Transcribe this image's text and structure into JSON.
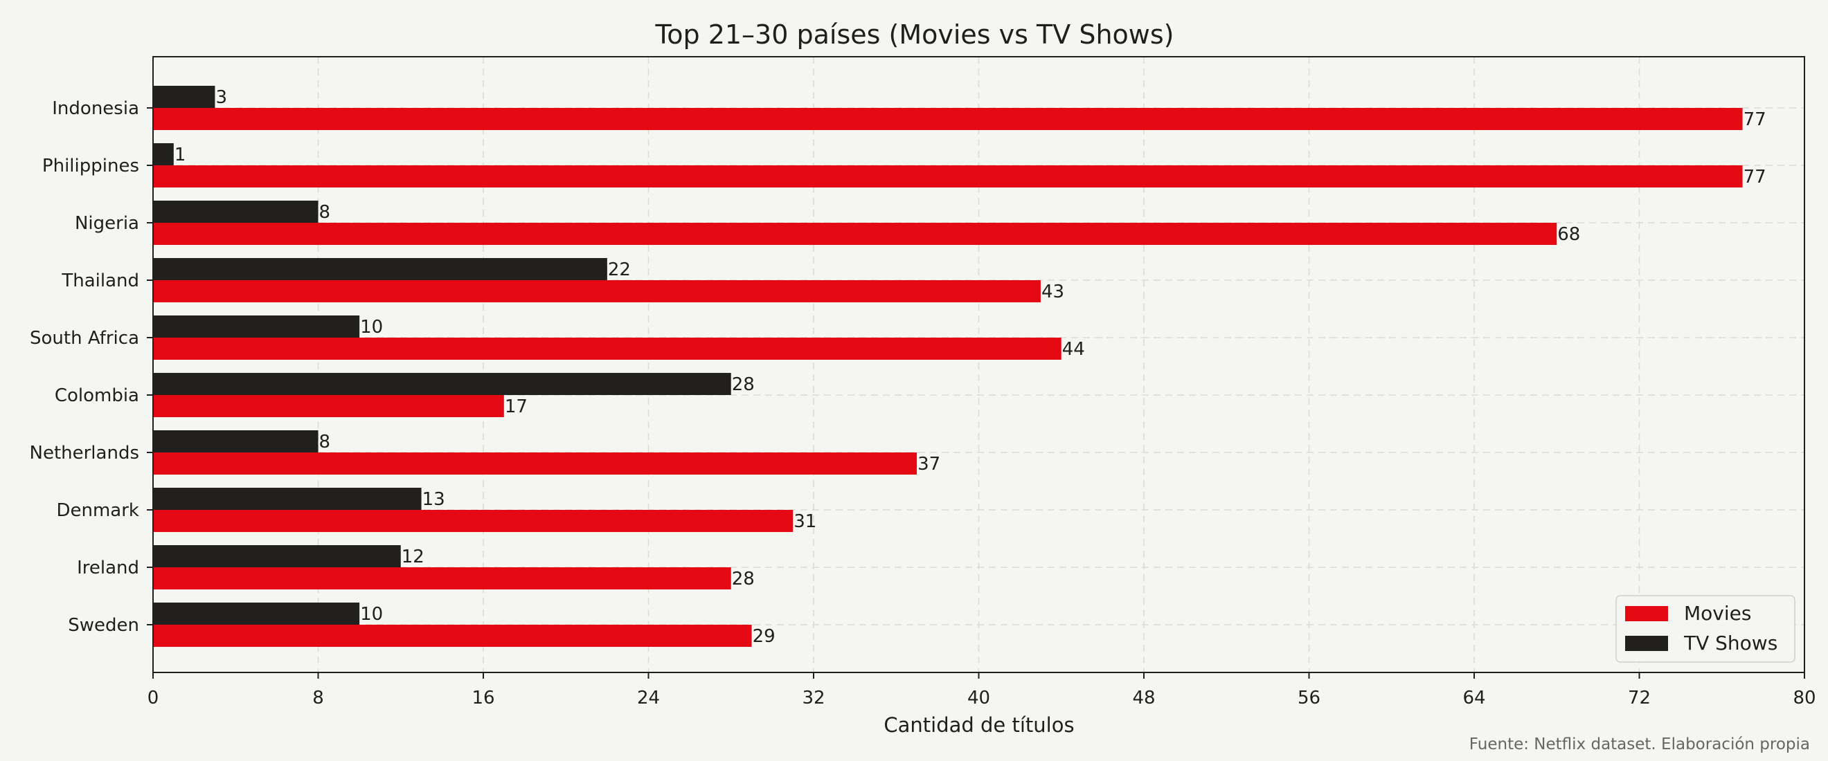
{
  "chart_data": {
    "type": "bar",
    "orientation": "horizontal",
    "title": "Top 21–30 países (Movies vs TV Shows)",
    "xlabel": "Cantidad de títulos",
    "ylabel": "",
    "source": "Fuente: Netflix dataset. Elaboración propia",
    "categories": [
      "Indonesia",
      "Philippines",
      "Nigeria",
      "Thailand",
      "South Africa",
      "Colombia",
      "Netherlands",
      "Denmark",
      "Ireland",
      "Sweden"
    ],
    "series": [
      {
        "name": "Movies",
        "color": "#e50914",
        "values": [
          77,
          77,
          68,
          43,
          44,
          17,
          37,
          31,
          28,
          29
        ]
      },
      {
        "name": "TV Shows",
        "color": "#221f1f",
        "values": [
          3,
          1,
          8,
          22,
          10,
          28,
          8,
          13,
          12,
          10
        ]
      }
    ],
    "xlim": [
      0,
      80
    ],
    "xticks": [
      0,
      8,
      16,
      24,
      32,
      40,
      48,
      56,
      64,
      72,
      80
    ],
    "grid": true,
    "legend": "lower-right"
  }
}
